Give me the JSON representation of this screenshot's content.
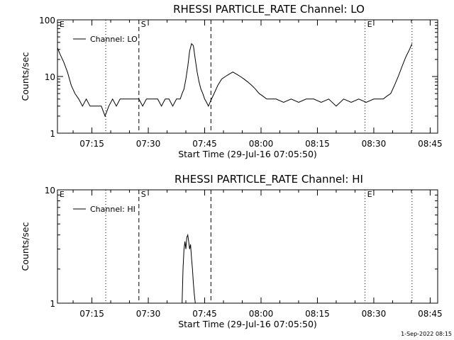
{
  "footer": "1-Sep-2022 08:15",
  "chart_data": [
    {
      "type": "line",
      "title": "RHESSI PARTICLE_RATE Channel: LO",
      "xlabel": "Start Time (29-Jul-16 07:05:50)",
      "ylabel": "Counts/sec",
      "yscale": "log",
      "ylim": [
        1,
        100
      ],
      "yticks": [
        "1",
        "10",
        "100"
      ],
      "xlim": [
        "07:05:50",
        "08:47:00"
      ],
      "xticks": [
        "07:15",
        "07:30",
        "07:45",
        "08:00",
        "08:15",
        "08:30",
        "08:45"
      ],
      "legend": {
        "entries": [
          "Channel: LO"
        ],
        "placement": "top-left"
      },
      "markers": [
        {
          "time": "07:05:50",
          "label": "E",
          "style": "dotted"
        },
        {
          "time": "07:18:40",
          "label": "",
          "style": "dotted"
        },
        {
          "time": "07:27:30",
          "label": "S",
          "style": "dashed"
        },
        {
          "time": "07:46:40",
          "label": "",
          "style": "dashed"
        },
        {
          "time": "08:27:40",
          "label": "E",
          "style": "dotted"
        },
        {
          "time": "08:40:10",
          "label": "",
          "style": "dotted"
        }
      ],
      "series": [
        {
          "name": "Channel: LO",
          "x": [
            "07:05:50",
            "07:06:30",
            "07:07:30",
            "07:08:30",
            "07:09:30",
            "07:10:30",
            "07:11:30",
            "07:12:30",
            "07:13:30",
            "07:14:30",
            "07:15:30",
            "07:16:30",
            "07:17:30",
            "07:18:30",
            "07:19:30",
            "07:20:30",
            "07:21:30",
            "07:22:30",
            "07:23:30",
            "07:24:30",
            "07:25:30",
            "07:26:30",
            "07:27:30",
            "07:28:30",
            "07:29:30",
            "07:30:30",
            "07:31:30",
            "07:32:30",
            "07:33:30",
            "07:34:30",
            "07:35:30",
            "07:36:30",
            "07:37:30",
            "07:38:30",
            "07:39:00",
            "07:39:30",
            "07:40:00",
            "07:40:30",
            "07:41:00",
            "07:41:30",
            "07:42:00",
            "07:42:30",
            "07:43:00",
            "07:43:30",
            "07:44:00",
            "07:44:30",
            "07:45:00",
            "07:45:30",
            "07:46:00",
            "07:46:40",
            "07:47:30",
            "07:48:30",
            "07:49:30",
            "07:50:30",
            "07:51:30",
            "07:52:30",
            "07:53:30",
            "07:54:30",
            "07:55:30",
            "07:56:30",
            "07:57:30",
            "07:58:30",
            "07:59:30",
            "08:00:30",
            "08:01:30",
            "08:02:30",
            "08:04:00",
            "08:06:00",
            "08:08:00",
            "08:10:00",
            "08:12:00",
            "08:14:00",
            "08:16:00",
            "08:18:00",
            "08:20:00",
            "08:22:00",
            "08:24:00",
            "08:26:00",
            "08:28:00",
            "08:30:00",
            "08:31:30",
            "08:32:30",
            "08:33:30",
            "08:34:30",
            "08:35:30",
            "08:36:30",
            "08:37:30",
            "08:38:30",
            "08:39:30",
            "08:40:10"
          ],
          "values": [
            32,
            25,
            18,
            12,
            7,
            5,
            4,
            3,
            4,
            3,
            3,
            3,
            3,
            2,
            3,
            4,
            3,
            4,
            4,
            4,
            4,
            4,
            4,
            3,
            4,
            4,
            4,
            4,
            3,
            4,
            4,
            3,
            4,
            4,
            5,
            6,
            9,
            15,
            28,
            38,
            35,
            20,
            12,
            8,
            6,
            5,
            4,
            3.5,
            3,
            3.8,
            5,
            7,
            9,
            10,
            11,
            12,
            11,
            10,
            9,
            8,
            7,
            6,
            5,
            4.5,
            4,
            4,
            4,
            3.5,
            4,
            3.5,
            4,
            4,
            3.5,
            4,
            3,
            4,
            3.5,
            4,
            3.5,
            4,
            4,
            4,
            4.5,
            5,
            7,
            10,
            15,
            22,
            30,
            38
          ]
        }
      ]
    },
    {
      "type": "line",
      "title": "RHESSI PARTICLE_RATE Channel: HI",
      "xlabel": "Start Time (29-Jul-16 07:05:50)",
      "ylabel": "Counts/sec",
      "yscale": "log",
      "ylim": [
        1,
        10
      ],
      "yticks": [
        "1",
        "10"
      ],
      "xlim": [
        "07:05:50",
        "08:47:00"
      ],
      "xticks": [
        "07:15",
        "07:30",
        "07:45",
        "08:00",
        "08:15",
        "08:30",
        "08:45"
      ],
      "legend": {
        "entries": [
          "Channel: HI"
        ],
        "placement": "top-left"
      },
      "markers": [
        {
          "time": "07:05:50",
          "label": "E",
          "style": "dotted"
        },
        {
          "time": "07:18:40",
          "label": "",
          "style": "dotted"
        },
        {
          "time": "07:27:30",
          "label": "S",
          "style": "dashed"
        },
        {
          "time": "07:46:40",
          "label": "",
          "style": "dashed"
        },
        {
          "time": "08:27:40",
          "label": "E",
          "style": "dotted"
        },
        {
          "time": "08:40:10",
          "label": "",
          "style": "dotted"
        }
      ],
      "series": [
        {
          "name": "Channel: HI",
          "x": [
            "07:39:00",
            "07:39:15",
            "07:39:30",
            "07:39:45",
            "07:40:00",
            "07:40:15",
            "07:40:30",
            "07:40:45",
            "07:41:00",
            "07:41:15",
            "07:41:30",
            "07:41:45",
            "07:42:00",
            "07:42:15",
            "07:42:30"
          ],
          "values": [
            1,
            2,
            3,
            3.5,
            3,
            3.8,
            4,
            3.5,
            3,
            3.3,
            2.5,
            2,
            1.5,
            1.2,
            1
          ]
        }
      ]
    }
  ]
}
